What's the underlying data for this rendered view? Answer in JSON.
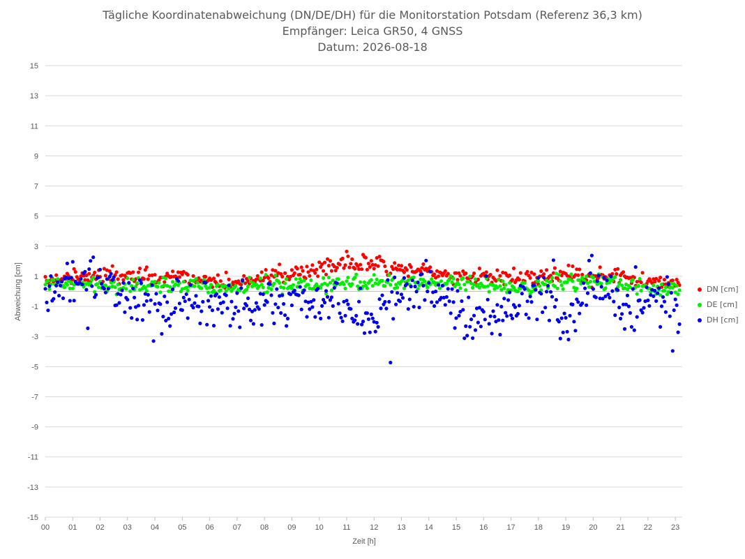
{
  "chart_data": {
    "type": "scatter",
    "title": "Tägliche Koordinatenabweichung (DN/DE/DH) für die Monitorstation Potsdam (Referenz 36,3 km)",
    "subtitle": "Empfänger: Leica GR50, 4 GNSS",
    "date_line": "Datum: 2026-08-18",
    "xlabel": "Zeit [h]",
    "ylabel": "Abweichung [cm]",
    "ylim": [
      -15,
      15
    ],
    "xlim": [
      0,
      23.25
    ],
    "y_ticks": [
      15,
      13,
      11,
      9,
      7,
      5,
      3,
      1,
      -1,
      -3,
      -5,
      -7,
      -9,
      -11,
      -13,
      -15
    ],
    "x_tick_labels": [
      "00",
      "01",
      "02",
      "03",
      "04",
      "05",
      "06",
      "07",
      "08",
      "09",
      "10",
      "11",
      "12",
      "13",
      "14",
      "15",
      "16",
      "17",
      "18",
      "19",
      "20",
      "21",
      "22",
      "23"
    ],
    "grid": "horizontal",
    "legend_position": "right",
    "series": [
      {
        "name": "DN [cm]",
        "color": "#ff0000",
        "center": [
          [
            0,
            0.9
          ],
          [
            1,
            0.8
          ],
          [
            2,
            0.9
          ],
          [
            3,
            1.1
          ],
          [
            4,
            0.9
          ],
          [
            5,
            1.0
          ],
          [
            6,
            0.6
          ],
          [
            7,
            0.6
          ],
          [
            8,
            1.0
          ],
          [
            9,
            1.0
          ],
          [
            10,
            1.4
          ],
          [
            11,
            2.0
          ],
          [
            12,
            1.9
          ],
          [
            13,
            1.5
          ],
          [
            14,
            1.4
          ],
          [
            15,
            0.9
          ],
          [
            16,
            1.0
          ],
          [
            17,
            0.9
          ],
          [
            18,
            0.8
          ],
          [
            19,
            1.2
          ],
          [
            20,
            0.9
          ],
          [
            21,
            1.2
          ],
          [
            22,
            0.4
          ],
          [
            23,
            0.7
          ]
        ]
      },
      {
        "name": "DE [cm]",
        "color": "#00ee00",
        "center": [
          [
            0,
            0.5
          ],
          [
            1,
            0.5
          ],
          [
            2,
            0.5
          ],
          [
            3,
            0.3
          ],
          [
            4,
            0.5
          ],
          [
            5,
            0.3
          ],
          [
            6,
            0.3
          ],
          [
            7,
            0.2
          ],
          [
            8,
            0.5
          ],
          [
            9,
            0.3
          ],
          [
            10,
            0.4
          ],
          [
            11,
            0.6
          ],
          [
            12,
            0.5
          ],
          [
            13,
            0.6
          ],
          [
            14,
            0.5
          ],
          [
            15,
            0.6
          ],
          [
            16,
            0.4
          ],
          [
            17,
            0.3
          ],
          [
            18,
            0.3
          ],
          [
            19,
            0.6
          ],
          [
            20,
            0.7
          ],
          [
            21,
            0.6
          ],
          [
            22,
            0.2
          ],
          [
            23,
            0.2
          ]
        ]
      },
      {
        "name": "DH [cm]",
        "color": "#0000ee",
        "center": [
          [
            0,
            -0.5
          ],
          [
            1,
            0.8
          ],
          [
            2,
            0.6
          ],
          [
            3,
            -0.3
          ],
          [
            4,
            -1.2
          ],
          [
            5,
            -0.8
          ],
          [
            6,
            -1.0
          ],
          [
            7,
            -1.0
          ],
          [
            8,
            -0.6
          ],
          [
            9,
            -0.8
          ],
          [
            10,
            -0.3
          ],
          [
            11,
            -1.5
          ],
          [
            12,
            -1.5
          ],
          [
            13,
            -0.2
          ],
          [
            14,
            0.2
          ],
          [
            15,
            -1.6
          ],
          [
            16,
            -1.8
          ],
          [
            17,
            -1.3
          ],
          [
            18,
            -0.1
          ],
          [
            19,
            -1.6
          ],
          [
            20,
            0.8
          ],
          [
            21,
            -1.2
          ],
          [
            22,
            -0.5
          ],
          [
            23,
            -0.8
          ]
        ]
      }
    ]
  }
}
